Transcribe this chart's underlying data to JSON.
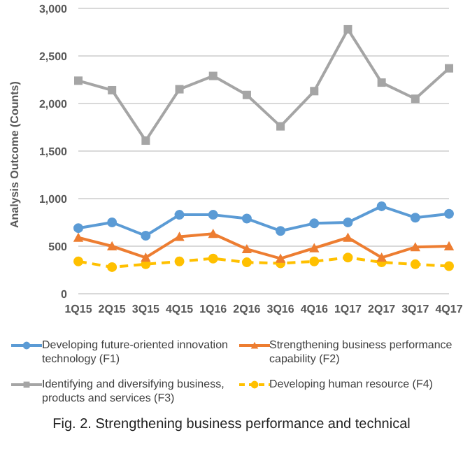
{
  "chart_data": {
    "type": "line",
    "ylabel": "Analysis Outcome (Counts)",
    "categories": [
      "1Q15",
      "2Q15",
      "3Q15",
      "4Q15",
      "1Q16",
      "2Q16",
      "3Q16",
      "4Q16",
      "1Q17",
      "2Q17",
      "3Q17",
      "4Q17"
    ],
    "series": [
      {
        "name": "Developing future-oriented innovation technology (F1)",
        "color": "#5b9bd5",
        "marker": "circle",
        "line_style": "solid",
        "values": [
          690,
          750,
          610,
          830,
          830,
          790,
          660,
          740,
          750,
          920,
          800,
          840
        ]
      },
      {
        "name": "Strengthening business performance capability (F2)",
        "color": "#ed7d31",
        "marker": "triangle",
        "line_style": "solid",
        "values": [
          590,
          500,
          380,
          600,
          630,
          470,
          370,
          480,
          590,
          380,
          490,
          500
        ]
      },
      {
        "name": "Identifying and diversifying business, products and services (F3)",
        "color": "#a5a5a5",
        "marker": "square",
        "line_style": "solid",
        "values": [
          2240,
          2140,
          1610,
          2150,
          2290,
          2090,
          1760,
          2130,
          2780,
          2220,
          2050,
          2370
        ]
      },
      {
        "name": "Developing human resource (F4)",
        "color": "#ffc000",
        "marker": "circle",
        "line_style": "dashed",
        "values": [
          340,
          280,
          310,
          340,
          370,
          330,
          320,
          340,
          380,
          330,
          310,
          290
        ]
      }
    ],
    "ylim": [
      0,
      3000
    ],
    "yticks": [
      0,
      500,
      {
        "value": 1000,
        "label": "1,000"
      },
      {
        "value": 1500,
        "label": "1,500"
      },
      {
        "value": 2000,
        "label": "2,000"
      },
      {
        "value": 2500,
        "label": "2,500"
      },
      {
        "value": 3000,
        "label": "3,000"
      }
    ],
    "grid": "y",
    "legend": "bottom",
    "annotations": [
      "Fig. 2. Strengthening business performance and technical"
    ]
  }
}
